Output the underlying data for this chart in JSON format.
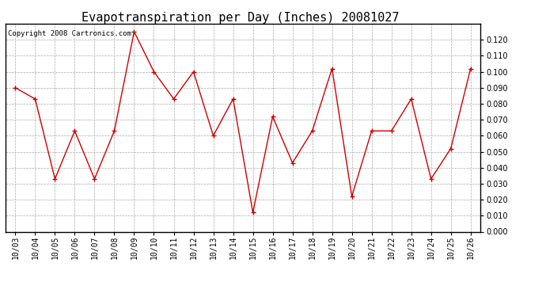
{
  "title": "Evapotranspiration per Day (Inches) 20081027",
  "copyright_text": "Copyright 2008 Cartronics.com",
  "x_labels": [
    "10/03",
    "10/04",
    "10/05",
    "10/06",
    "10/07",
    "10/08",
    "10/09",
    "10/10",
    "10/11",
    "10/12",
    "10/13",
    "10/14",
    "10/15",
    "10/16",
    "10/17",
    "10/18",
    "10/19",
    "10/20",
    "10/21",
    "10/22",
    "10/23",
    "10/24",
    "10/25",
    "10/26"
  ],
  "y_values": [
    0.09,
    0.083,
    0.033,
    0.063,
    0.033,
    0.063,
    0.125,
    0.1,
    0.083,
    0.1,
    0.06,
    0.083,
    0.012,
    0.072,
    0.043,
    0.063,
    0.102,
    0.022,
    0.063,
    0.063,
    0.083,
    0.033,
    0.052,
    0.102
  ],
  "line_color": "#cc0000",
  "marker": "+",
  "marker_size": 5,
  "ylim": [
    0.0,
    0.13
  ],
  "yticks": [
    0.0,
    0.01,
    0.02,
    0.03,
    0.04,
    0.05,
    0.06,
    0.07,
    0.08,
    0.09,
    0.1,
    0.11,
    0.12
  ],
  "bg_color": "#ffffff",
  "grid_color": "#aaaaaa",
  "title_fontsize": 11,
  "tick_fontsize": 7,
  "copyright_fontsize": 6.5
}
